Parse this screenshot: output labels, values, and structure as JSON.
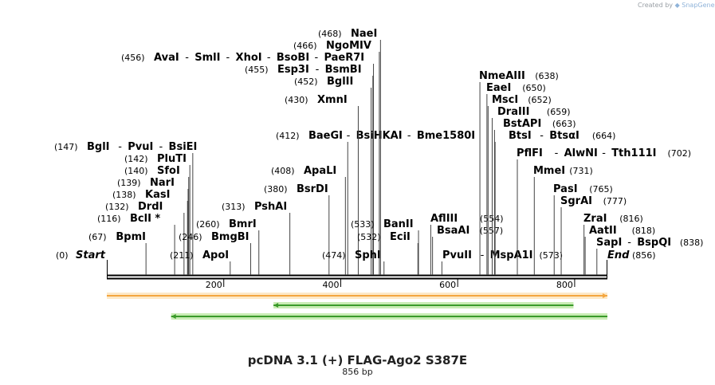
{
  "credit": {
    "prefix": "Created by",
    "brand": "SnapGene"
  },
  "title": "pcDNA 3.1 (+) FLAG-Ago2 S387E",
  "length_label": "856 bp",
  "map": {
    "sequence_length": 856,
    "ruler_ticks": [
      200,
      400,
      600,
      800
    ],
    "start_label": "Start",
    "end_label": "End",
    "start_pos": "(0)",
    "end_pos": "(856)"
  },
  "sites": [
    {
      "pos": 67,
      "names": [
        "BpmI"
      ]
    },
    {
      "pos": 116,
      "names": [
        "BclI *"
      ]
    },
    {
      "pos": 132,
      "names": [
        "DrdI"
      ]
    },
    {
      "pos": 138,
      "names": [
        "KasI"
      ]
    },
    {
      "pos": 139,
      "names": [
        "NarI"
      ]
    },
    {
      "pos": 140,
      "names": [
        "SfoI"
      ]
    },
    {
      "pos": 142,
      "names": [
        "PluTI"
      ]
    },
    {
      "pos": 147,
      "names": [
        "BglI",
        "PvuI",
        "BsiEI"
      ]
    },
    {
      "pos": 211,
      "names": [
        "ApoI"
      ]
    },
    {
      "pos": 246,
      "names": [
        "BmgBI"
      ]
    },
    {
      "pos": 260,
      "names": [
        "BmrI"
      ]
    },
    {
      "pos": 313,
      "names": [
        "PshAI"
      ]
    },
    {
      "pos": 380,
      "names": [
        "BsrDI"
      ]
    },
    {
      "pos": 408,
      "names": [
        "ApaLI"
      ]
    },
    {
      "pos": 412,
      "names": [
        "BaeGI",
        "BsiHKAI",
        "Bme1580I"
      ]
    },
    {
      "pos": 430,
      "names": [
        "XmnI"
      ]
    },
    {
      "pos": 452,
      "names": [
        "BglII"
      ]
    },
    {
      "pos": 455,
      "names": [
        "Esp3I",
        "BsmBI"
      ]
    },
    {
      "pos": 456,
      "names": [
        "AvaI",
        "SmlI",
        "XhoI",
        "BsoBI",
        "PaeR7I"
      ]
    },
    {
      "pos": 466,
      "names": [
        "NgoMIV"
      ]
    },
    {
      "pos": 468,
      "names": [
        "NaeI"
      ]
    },
    {
      "pos": 474,
      "names": [
        "SphI"
      ]
    },
    {
      "pos": 532,
      "names": [
        "EciI"
      ]
    },
    {
      "pos": 533,
      "names": [
        "BanII"
      ]
    },
    {
      "pos": 554,
      "names": [
        "AflIII"
      ]
    },
    {
      "pos": 557,
      "names": [
        "BsaAI"
      ]
    },
    {
      "pos": 573,
      "names": [
        "PvuII",
        "MspA1I"
      ]
    },
    {
      "pos": 638,
      "names": [
        "NmeAIII"
      ]
    },
    {
      "pos": 650,
      "names": [
        "EaeI"
      ]
    },
    {
      "pos": 652,
      "names": [
        "MscI"
      ]
    },
    {
      "pos": 659,
      "names": [
        "DraIII"
      ]
    },
    {
      "pos": 663,
      "names": [
        "BstAPI"
      ]
    },
    {
      "pos": 664,
      "names": [
        "BtsI",
        "BtsαI"
      ]
    },
    {
      "pos": 702,
      "names": [
        "PflFI",
        "AlwNI",
        "Tth111I"
      ]
    },
    {
      "pos": 731,
      "names": [
        "MmeI"
      ]
    },
    {
      "pos": 765,
      "names": [
        "PasI"
      ]
    },
    {
      "pos": 777,
      "names": [
        "SgrAI"
      ]
    },
    {
      "pos": 816,
      "names": [
        "ZraI"
      ]
    },
    {
      "pos": 818,
      "names": [
        "AatII"
      ]
    },
    {
      "pos": 838,
      "names": [
        "SapI",
        "BspQI"
      ]
    }
  ],
  "features": [
    {
      "kind": "orange-bar",
      "from": 0,
      "to": 856,
      "direction": "forward",
      "color": "#f4a640"
    },
    {
      "kind": "green-bar",
      "from": 285,
      "to": 798,
      "direction": "reverse",
      "color": "#3a9a2a"
    },
    {
      "kind": "green-bar",
      "from": 110,
      "to": 856,
      "direction": "reverse",
      "color": "#3a9a2a"
    }
  ],
  "colors": {
    "line": "#000000",
    "feature_highlight_orange": "#fde9c8",
    "feature_highlight_green": "#c9ecb4"
  }
}
